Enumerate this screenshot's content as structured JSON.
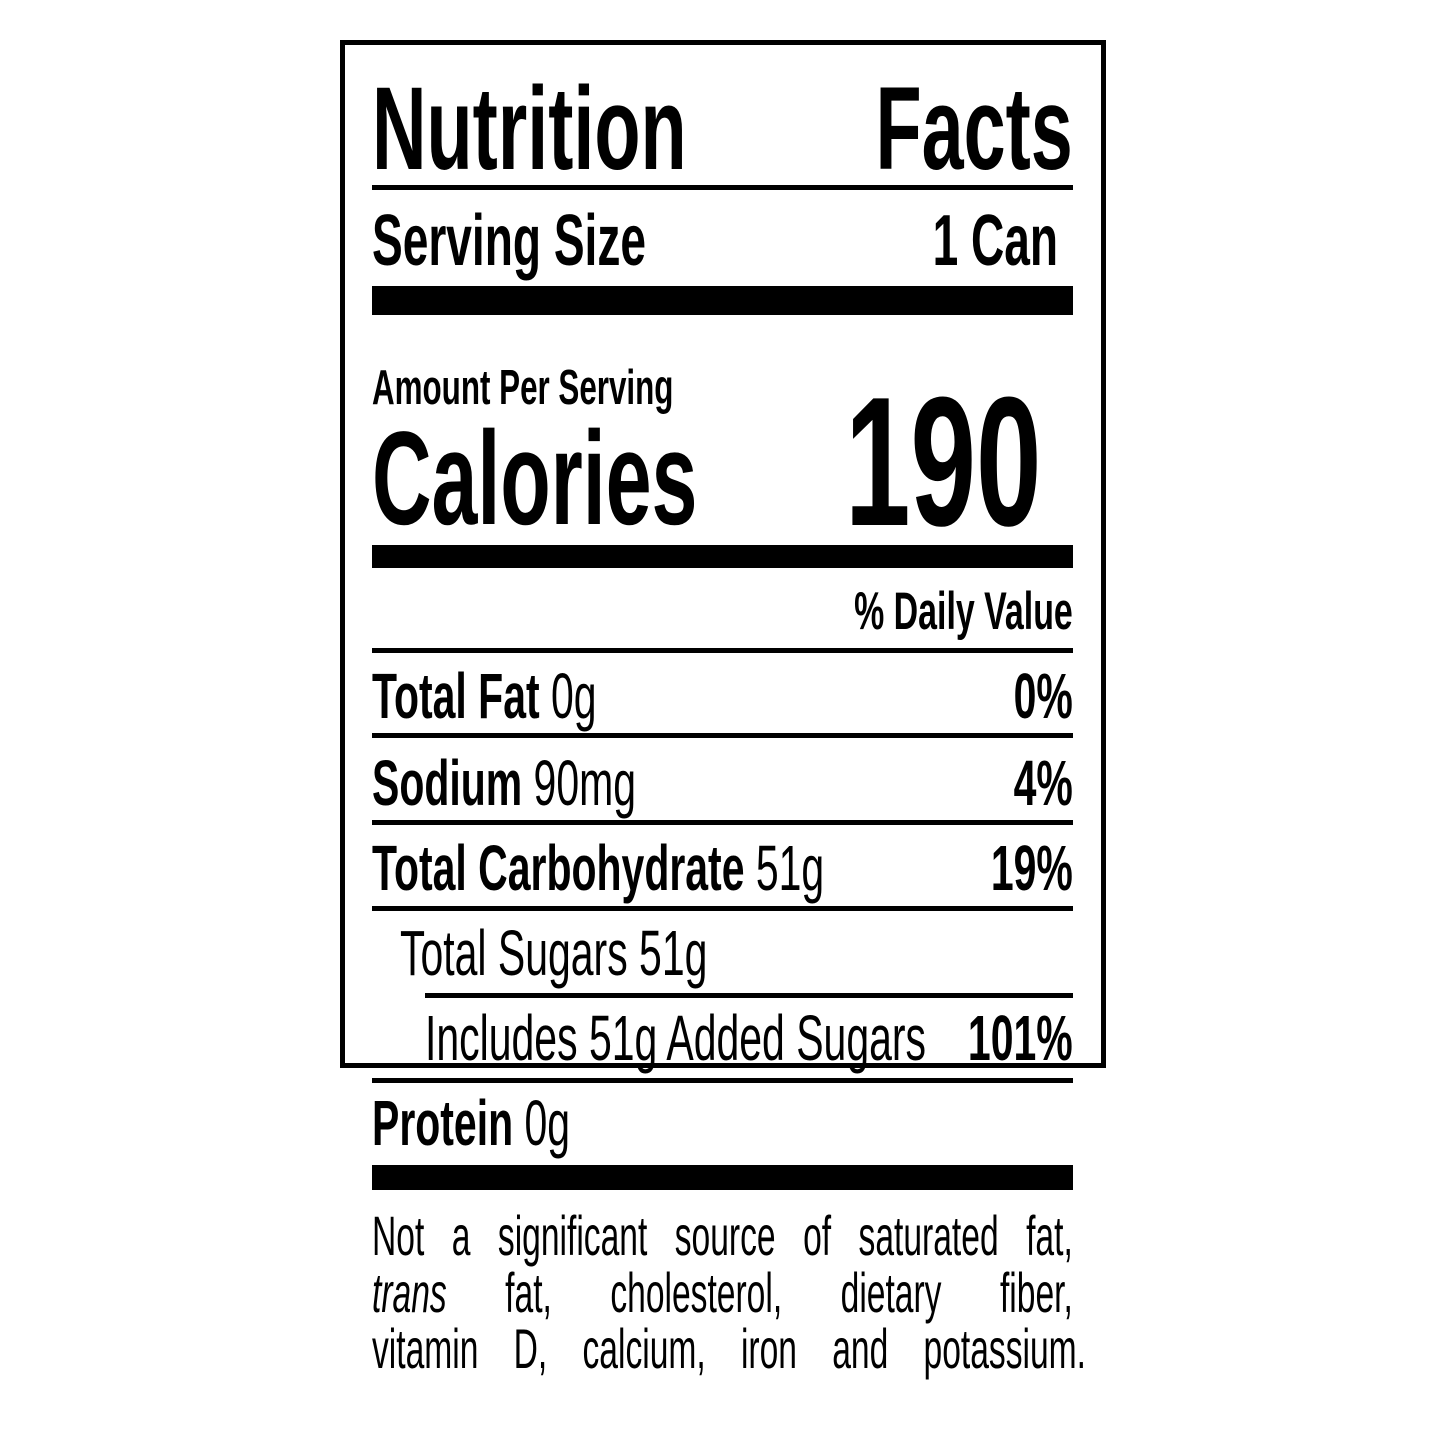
{
  "label": {
    "title_word1": "Nutrition",
    "title_word2": "Facts",
    "serving_size_label": "Serving Size",
    "serving_size_value": "1 Can",
    "amount_per_serving": "Amount Per Serving",
    "calories_label": "Calories",
    "calories_value": "190",
    "daily_value_header": "% Daily Value",
    "nutrients": [
      {
        "name": "Total Fat",
        "amount": "0g",
        "dv": "0%"
      },
      {
        "name": "Sodium",
        "amount": "90mg",
        "dv": "4%"
      },
      {
        "name": "Total Carbohydrate",
        "amount": "51g",
        "dv": "19%"
      },
      {
        "name": "Total Sugars 51g",
        "amount": "",
        "dv": ""
      },
      {
        "name": "Includes 51g Added Sugars",
        "amount": "",
        "dv": "101%"
      },
      {
        "name": "Protein",
        "amount": "0g",
        "dv": ""
      }
    ],
    "footnote": {
      "line1": "Not a significant source of saturated fat,",
      "line2_italic": "trans",
      "line2_rest": " fat, cholesterol, dietary fiber,",
      "line3": "vitamin D, calcium, iron and potassium."
    }
  }
}
